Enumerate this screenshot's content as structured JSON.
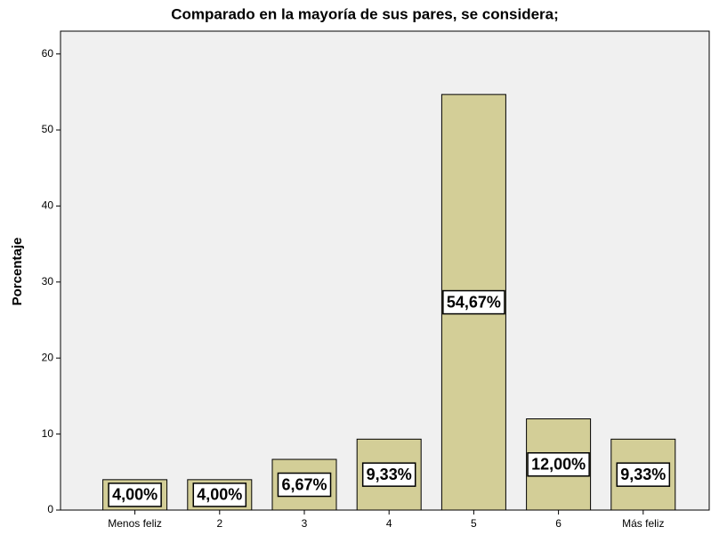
{
  "chart_data": {
    "type": "bar",
    "title": "Comparado en la mayoría de sus pares, se considera;",
    "y_label": "Porcentaje",
    "categories": [
      "Menos feliz",
      "2",
      "3",
      "4",
      "5",
      "6",
      "Más feliz"
    ],
    "values": [
      4,
      4,
      6.67,
      9.33,
      54.67,
      12,
      9.33
    ],
    "value_labels": [
      "4,00%",
      "4,00%",
      "6,67%",
      "9,33%",
      "54,67%",
      "12,00%",
      "9,33%"
    ],
    "color": "#d3ce97",
    "ylim": [
      0,
      63
    ],
    "yticks": [
      0,
      10,
      20,
      30,
      40,
      50,
      60
    ]
  }
}
